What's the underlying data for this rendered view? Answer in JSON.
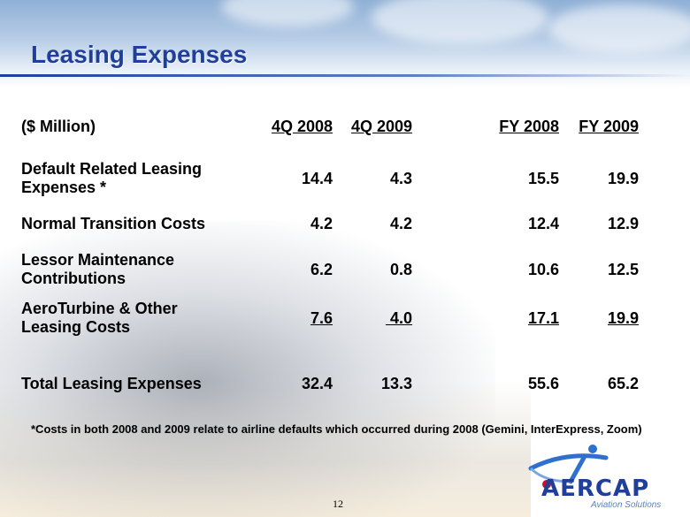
{
  "title": "Leasing Expenses",
  "table": {
    "header": {
      "label": "($ Million)",
      "cols": [
        "4Q 2008",
        "4Q 2009",
        "FY 2008",
        "FY 2009"
      ]
    },
    "rows": [
      {
        "label": "Default Related Leasing Expenses *",
        "label_lines": [
          "Default Related Leasing",
          "Expenses *"
        ],
        "values": [
          "14.4",
          "4.3",
          "15.5",
          "19.9"
        ]
      },
      {
        "label": "Normal Transition Costs",
        "label_lines": [
          "Normal Transition Costs"
        ],
        "values": [
          "4.2",
          "4.2",
          "12.4",
          "12.9"
        ]
      },
      {
        "label": "Lessor Maintenance Contributions",
        "label_lines": [
          "Lessor Maintenance",
          "Contributions"
        ],
        "values": [
          "6.2",
          "0.8",
          "10.6",
          "12.5"
        ]
      },
      {
        "label": "AeroTurbine & Other Leasing Costs",
        "label_lines": [
          "AeroTurbine & Other",
          "Leasing Costs"
        ],
        "values": [
          "7.6",
          " 4.0",
          "17.1",
          "19.9"
        ]
      },
      {
        "label": "Total Leasing Expenses",
        "label_lines": [
          "Total Leasing Expenses"
        ],
        "values": [
          "32.4",
          "13.3",
          "55.6",
          "65.2"
        ]
      }
    ]
  },
  "footnote": "*Costs in both 2008 and 2009 relate to airline defaults which occurred during 2008 (Gemini, InterExpress, Zoom)",
  "page_number": "12",
  "logo": {
    "wordmark": "AERCAP",
    "tagline": "Aviation Solutions"
  },
  "colors": {
    "title": "#1f3f9a",
    "accent": "#5a7fc8",
    "logo_red": "#c8102e"
  }
}
